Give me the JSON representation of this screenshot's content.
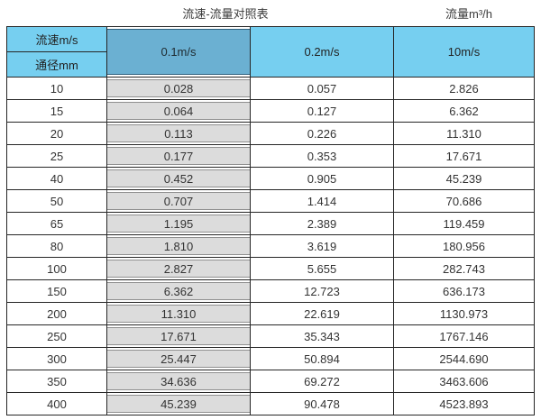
{
  "titles": {
    "left": "流速-流量对照表",
    "right": "流量m³/h"
  },
  "table": {
    "corner_top": "流速m/s",
    "corner_bottom": "通径mm",
    "columns": [
      "0.1m/s",
      "0.2m/s",
      "10m/s"
    ],
    "highlighted_column": "0.1m/s",
    "rows": [
      {
        "diameter": "10",
        "values": [
          "0.028",
          "0.057",
          "2.826"
        ]
      },
      {
        "diameter": "15",
        "values": [
          "0.064",
          "0.127",
          "6.362"
        ]
      },
      {
        "diameter": "20",
        "values": [
          "0.113",
          "0.226",
          "11.310"
        ]
      },
      {
        "diameter": "25",
        "values": [
          "0.177",
          "0.353",
          "17.671"
        ]
      },
      {
        "diameter": "40",
        "values": [
          "0.452",
          "0.905",
          "45.239"
        ]
      },
      {
        "diameter": "50",
        "values": [
          "0.707",
          "1.414",
          "70.686"
        ]
      },
      {
        "diameter": "65",
        "values": [
          "1.195",
          "2.389",
          "119.459"
        ]
      },
      {
        "diameter": "80",
        "values": [
          "1.810",
          "3.619",
          "180.956"
        ]
      },
      {
        "diameter": "100",
        "values": [
          "2.827",
          "5.655",
          "282.743"
        ]
      },
      {
        "diameter": "150",
        "values": [
          "6.362",
          "12.723",
          "636.173"
        ]
      },
      {
        "diameter": "200",
        "values": [
          "11.310",
          "22.619",
          "1130.973"
        ]
      },
      {
        "diameter": "250",
        "values": [
          "17.671",
          "35.343",
          "1767.146"
        ]
      },
      {
        "diameter": "300",
        "values": [
          "25.447",
          "50.894",
          "2544.690"
        ]
      },
      {
        "diameter": "350",
        "values": [
          "34.636",
          "69.272",
          "3463.606"
        ]
      },
      {
        "diameter": "400",
        "values": [
          "45.239",
          "90.478",
          "4523.893"
        ]
      }
    ],
    "colors": {
      "header_light_blue": "#76cff0",
      "highlight_blue": "#6bb0d2",
      "highlight_gray": "#dcdcdc",
      "grid_border": "#262626"
    }
  },
  "chart_data": {
    "type": "table",
    "title": "流速-流量对照表",
    "value_unit": "流量m³/h",
    "row_axis_label": "通径mm",
    "column_axis_label": "流速m/s",
    "categories": [
      10,
      15,
      20,
      25,
      40,
      50,
      65,
      80,
      100,
      150,
      200,
      250,
      300,
      350,
      400
    ],
    "series": [
      {
        "name": "0.1m/s",
        "values": [
          0.028,
          0.064,
          0.113,
          0.177,
          0.452,
          0.707,
          1.195,
          1.81,
          2.827,
          6.362,
          11.31,
          17.671,
          25.447,
          34.636,
          45.239
        ]
      },
      {
        "name": "0.2m/s",
        "values": [
          0.057,
          0.127,
          0.226,
          0.353,
          0.905,
          1.414,
          2.389,
          3.619,
          5.655,
          12.723,
          22.619,
          35.343,
          50.894,
          69.272,
          90.478
        ]
      },
      {
        "name": "10m/s",
        "values": [
          2.826,
          6.362,
          11.31,
          17.671,
          45.239,
          70.686,
          119.459,
          180.956,
          282.743,
          636.173,
          1130.973,
          1767.146,
          2544.69,
          3463.606,
          4523.893
        ]
      }
    ]
  }
}
